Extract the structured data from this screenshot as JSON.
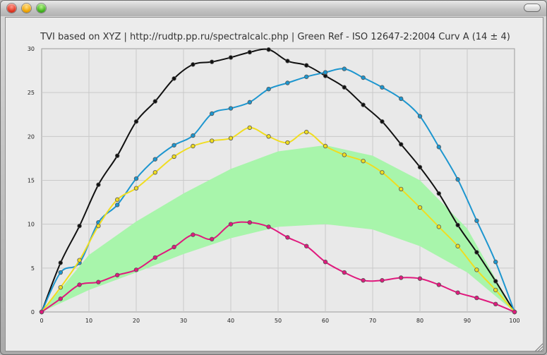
{
  "chart_data": {
    "type": "line",
    "title": "TVI based on XYZ | http://rudtp.pp.ru/spectralcalc.php | Green Ref - ISO 12647-2:2004 Curv A (14 ± 4)",
    "xlabel": "",
    "ylabel": "",
    "xlim": [
      0,
      100
    ],
    "ylim": [
      0,
      30
    ],
    "x_ticks": [
      0,
      10,
      20,
      30,
      40,
      50,
      60,
      70,
      80,
      90,
      100
    ],
    "y_ticks": [
      0,
      5,
      10,
      15,
      20,
      25,
      30
    ],
    "grid": true,
    "x": [
      0,
      4,
      8,
      12,
      16,
      20,
      24,
      28,
      32,
      36,
      40,
      44,
      48,
      52,
      56,
      60,
      64,
      68,
      72,
      76,
      80,
      84,
      88,
      92,
      96,
      100
    ],
    "series": [
      {
        "color": "#111111",
        "values": [
          0,
          5.6,
          9.8,
          14.5,
          17.8,
          21.7,
          24.0,
          26.6,
          28.2,
          28.5,
          29.0,
          29.6,
          29.9,
          28.6,
          28.1,
          26.9,
          25.6,
          23.6,
          21.7,
          19.1,
          16.5,
          13.5,
          9.9,
          6.8,
          3.5,
          0
        ]
      },
      {
        "color": "#1d96cf",
        "values": [
          0,
          4.5,
          5.6,
          10.2,
          12.2,
          15.2,
          17.4,
          19.0,
          20.1,
          22.6,
          23.2,
          23.9,
          25.4,
          26.1,
          26.8,
          27.3,
          27.7,
          26.7,
          25.6,
          24.3,
          22.3,
          18.8,
          15.1,
          10.4,
          5.7,
          0
        ]
      },
      {
        "color": "#f0dd20",
        "values": [
          0,
          2.8,
          5.9,
          9.8,
          12.8,
          14.1,
          15.9,
          17.7,
          18.9,
          19.5,
          19.8,
          21.0,
          20.0,
          19.3,
          20.5,
          18.9,
          17.9,
          17.2,
          15.9,
          14.0,
          11.9,
          9.7,
          7.5,
          4.8,
          2.5,
          0
        ]
      },
      {
        "color": "#e0197d",
        "values": [
          0,
          1.5,
          3.1,
          3.4,
          4.2,
          4.8,
          6.2,
          7.4,
          8.8,
          8.3,
          10.0,
          10.2,
          9.7,
          8.5,
          7.5,
          5.7,
          4.5,
          3.6,
          3.6,
          3.9,
          3.8,
          3.1,
          2.2,
          1.6,
          0.9,
          0
        ]
      }
    ],
    "band": {
      "color": "#a8f5ab",
      "x": [
        0,
        10,
        20,
        30,
        40,
        50,
        60,
        70,
        80,
        90,
        100
      ],
      "lower": [
        0,
        2.5,
        4.5,
        6.6,
        8.4,
        9.7,
        10.0,
        9.4,
        7.5,
        4.5,
        0
      ],
      "upper": [
        0,
        6.5,
        10.3,
        13.5,
        16.3,
        18.3,
        19.0,
        17.8,
        15.0,
        9.5,
        0
      ]
    }
  }
}
